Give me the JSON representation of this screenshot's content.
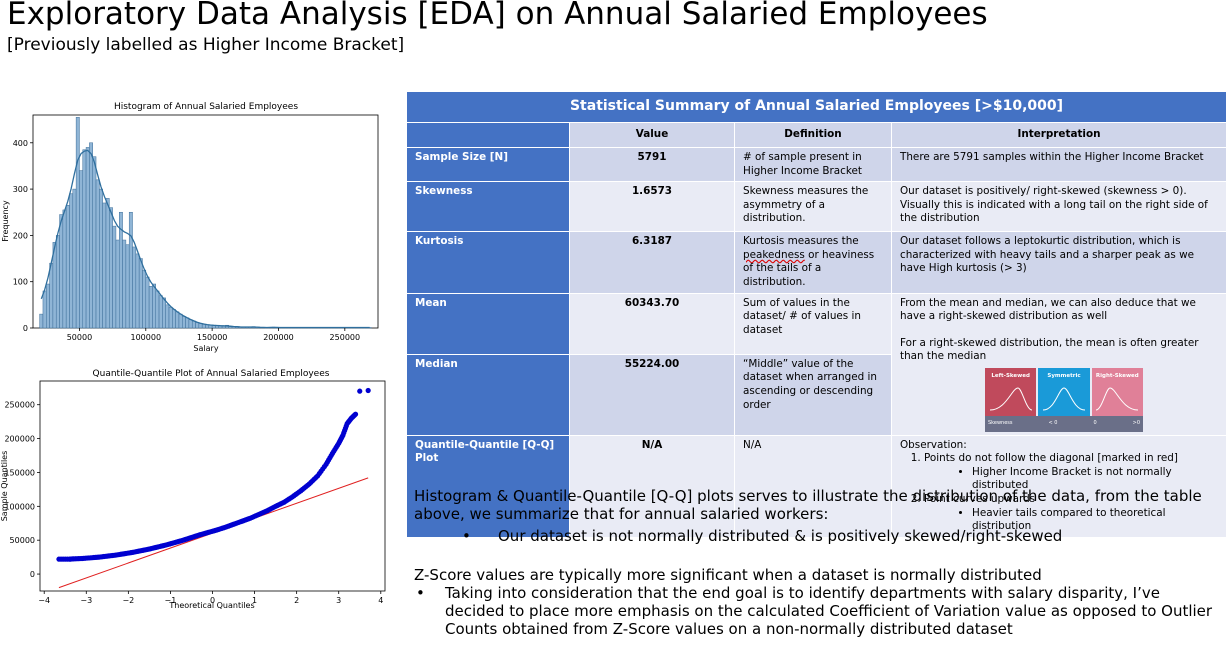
{
  "page": {
    "title": "Exploratory Data Analysis [EDA] on Annual Salaried Employees",
    "subtitle": "[Previously labelled as Higher Income Bracket]"
  },
  "histogram": {
    "title": "Histogram of Annual Salaried Employees",
    "xlabel": "Salary",
    "ylabel": "Frequency"
  },
  "qqplot": {
    "title": "Quantile-Quantile Plot of Annual Salaried Employees",
    "xlabel": "Theoretical Quantiles",
    "ylabel": "Sample Quantiles"
  },
  "chart_data": [
    {
      "type": "bar",
      "title": "Histogram of Annual Salaried Employees",
      "xlabel": "Salary",
      "ylabel": "Frequency",
      "xlim": [
        15000,
        275000
      ],
      "ylim": [
        0,
        460
      ],
      "xticks": [
        "50000",
        "100000",
        "150000",
        "200000",
        "250000"
      ],
      "yticks": [
        "0",
        "100",
        "200",
        "300",
        "400"
      ],
      "bin_start": 20000,
      "bin_width": 2500,
      "values": [
        30,
        80,
        95,
        140,
        185,
        200,
        245,
        255,
        265,
        290,
        300,
        455,
        340,
        385,
        390,
        400,
        370,
        320,
        300,
        270,
        280,
        260,
        220,
        190,
        250,
        190,
        180,
        250,
        175,
        160,
        150,
        125,
        110,
        90,
        95,
        80,
        70,
        65,
        50,
        45,
        40,
        35,
        30,
        25,
        22,
        18,
        15,
        12,
        10,
        8,
        7,
        6,
        6,
        5,
        5,
        4,
        6,
        3,
        3,
        3,
        2,
        2,
        2,
        2,
        3,
        2,
        1,
        1,
        1,
        1,
        2,
        1,
        1,
        1,
        1,
        1,
        1,
        1,
        1,
        1,
        1,
        1,
        1,
        1,
        1,
        1,
        1,
        1,
        1,
        1,
        1,
        1,
        1,
        1,
        1,
        1,
        1,
        1,
        1,
        1
      ],
      "kde_series": "kde",
      "grid": false,
      "colors": {
        "bar_fill": "#8fb5d6",
        "bar_edge": "#3d6e99",
        "kde": "#2f6f9e"
      }
    },
    {
      "type": "scatter",
      "title": "Quantile-Quantile Plot of Annual Salaried Employees",
      "xlabel": "Theoretical Quantiles",
      "ylabel": "Sample Quantiles",
      "xlim": [
        -4.1,
        4.1
      ],
      "ylim": [
        -25000,
        285000
      ],
      "xticks": [
        "-4",
        "-3",
        "-2",
        "-1",
        "0",
        "1",
        "2",
        "3",
        "4"
      ],
      "yticks": [
        "0",
        "50000",
        "100000",
        "150000",
        "200000",
        "250000"
      ],
      "points_x": [
        -3.65,
        -3.4,
        -3.3,
        -3.1,
        -2.9,
        -2.7,
        -2.5,
        -2.3,
        -2.1,
        -1.9,
        -1.7,
        -1.5,
        -1.3,
        -1.1,
        -0.9,
        -0.7,
        -0.5,
        -0.3,
        -0.1,
        0.1,
        0.3,
        0.5,
        0.7,
        0.9,
        1.1,
        1.3,
        1.5,
        1.7,
        1.9,
        2.1,
        2.3,
        2.5,
        2.7,
        2.85,
        3.0,
        3.1,
        3.2,
        3.3,
        3.4,
        3.5,
        3.7
      ],
      "points_y": [
        22000,
        22000,
        22500,
        23000,
        24000,
        25000,
        26500,
        28000,
        30000,
        32000,
        34500,
        37000,
        40000,
        43000,
        46500,
        50000,
        54000,
        58000,
        61500,
        65000,
        69000,
        73500,
        78000,
        82500,
        88000,
        93500,
        100000,
        106000,
        114000,
        123000,
        133000,
        145000,
        162000,
        178000,
        193000,
        205000,
        222000,
        230000,
        236000,
        270000,
        271000
      ],
      "line_x": [
        -3.65,
        3.7
      ],
      "line_y": [
        -20000,
        142000
      ],
      "grid": false,
      "colors": {
        "points": "#0000d0",
        "line": "#e02020"
      }
    }
  ],
  "table": {
    "title": "Statistical Summary of Annual Salaried Employees [>$10,000]",
    "columns": [
      "",
      "Value",
      "Definition",
      "Interpretation"
    ],
    "rows": [
      {
        "label": "Sample Size [N]",
        "value": "5791",
        "definition": "# of sample present in Higher Income Bracket",
        "interpretation": "There are 5791 samples within the Higher Income Bracket"
      },
      {
        "label": "Skewness",
        "value": "1.6573",
        "definition": "Skewness measures the asymmetry of a distribution.",
        "interpretation": "Our dataset is positively/ right-skewed (skewness > 0). Visually this is indicated with a long tail on the right side of the distribution"
      },
      {
        "label": "Kurtosis",
        "value": "6.3187",
        "definition_pre": "Kurtosis measures the ",
        "definition_word": "peakedness",
        "definition_post": " or heaviness of the tails of a distribution.",
        "interpretation": "Our dataset follows a leptokurtic distribution, which is characterized with heavy tails and a sharper peak as we have High kurtosis (> 3)"
      },
      {
        "label": "Mean",
        "value": "60343.70",
        "definition": "Sum of values in the dataset/ # of values in dataset"
      },
      {
        "label": "Median",
        "value": "55224.00",
        "definition": "“Middle” value of the dataset when arranged in ascending or descending order"
      },
      {
        "label": "Quantile-Quantile [Q-Q] Plot",
        "value": "N/A",
        "definition": "N/A"
      }
    ],
    "mean_median_interp": {
      "line1": "From the mean and median, we can also deduce that we have a right-skewed distribution as well",
      "line2": "For a right-skewed distribution, the mean is often greater than the median"
    },
    "skew_badges": {
      "left": "Left-Skewed",
      "mid": "Symmetric",
      "right": "Right-Skewed",
      "foot_label": "Skewness",
      "foot_lt": "< 0",
      "foot_zero": "0",
      "foot_gt": ">0"
    },
    "qq_interp": {
      "heading": "Observation:",
      "item1": "Points do not follow the diagonal [marked in red]",
      "item1_sub": "Higher Income Bracket is not normally distributed",
      "item2": "Point curves upwards",
      "item2_sub": "Heavier tails compared to theoretical distribution"
    }
  },
  "bottom": {
    "para1": "Histogram & Quantile-Quantile [Q-Q] plots serves to illustrate the distribution of the data, from the table above, we summarize that for annual salaried workers:",
    "bullet1": "Our dataset is not normally distributed & is positively skewed/right-skewed",
    "para2": "Z-Score values are typically more significant when a dataset is normally distributed",
    "bullet2": "Taking into consideration that the end goal is to identify departments with salary disparity, I’ve decided to place more emphasis on the calculated Coefficient of Variation value as opposed to Outlier Counts obtained from Z-Score values on a non-normally distributed dataset"
  }
}
